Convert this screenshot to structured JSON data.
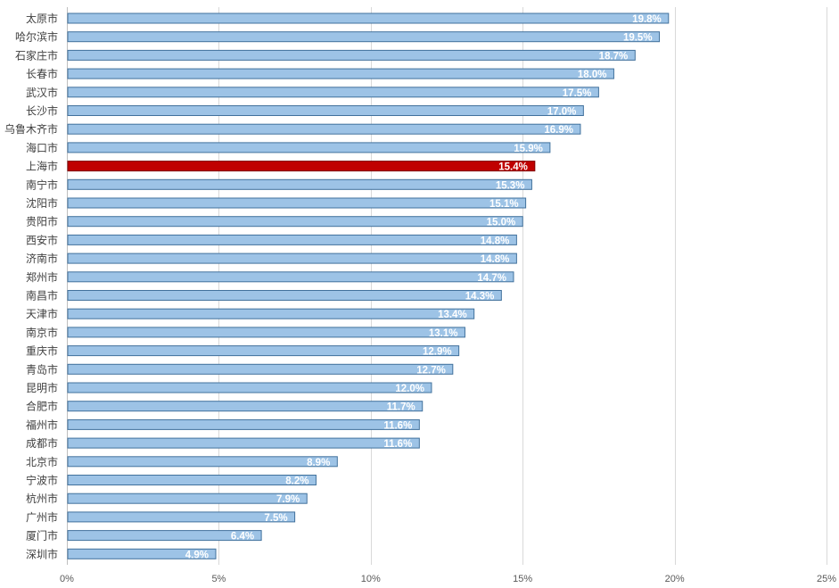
{
  "chart_data": {
    "type": "bar",
    "orientation": "horizontal",
    "categories": [
      "太原市",
      "哈尔滨市",
      "石家庄市",
      "长春市",
      "武汉市",
      "长沙市",
      "乌鲁木齐市",
      "海口市",
      "上海市",
      "南宁市",
      "沈阳市",
      "贵阳市",
      "西安市",
      "济南市",
      "郑州市",
      "南昌市",
      "天津市",
      "南京市",
      "重庆市",
      "青岛市",
      "昆明市",
      "合肥市",
      "福州市",
      "成都市",
      "北京市",
      "宁波市",
      "杭州市",
      "广州市",
      "厦门市",
      "深圳市"
    ],
    "values": [
      19.8,
      19.5,
      18.7,
      18.0,
      17.5,
      17.0,
      16.9,
      15.9,
      15.4,
      15.3,
      15.1,
      15.0,
      14.8,
      14.8,
      14.7,
      14.3,
      13.4,
      13.1,
      12.9,
      12.7,
      12.0,
      11.7,
      11.6,
      11.6,
      8.9,
      8.2,
      7.9,
      7.5,
      6.4,
      4.9
    ],
    "data_labels": [
      "19.8%",
      "19.5%",
      "18.7%",
      "18.0%",
      "17.5%",
      "17.0%",
      "16.9%",
      "15.9%",
      "15.4%",
      "15.3%",
      "15.1%",
      "15.0%",
      "14.8%",
      "14.8%",
      "14.7%",
      "14.3%",
      "13.4%",
      "13.1%",
      "12.9%",
      "12.7%",
      "12.0%",
      "11.7%",
      "11.6%",
      "11.6%",
      "8.9%",
      "8.2%",
      "7.9%",
      "7.5%",
      "6.4%",
      "4.9%"
    ],
    "highlight_category": "上海市",
    "xlim": [
      0,
      25
    ],
    "x_ticks": [
      0,
      5,
      10,
      15,
      20,
      25
    ],
    "x_tick_labels": [
      "0%",
      "5%",
      "10%",
      "15%",
      "20%",
      "25%"
    ],
    "grid": "vertical",
    "legend": "none",
    "title": "",
    "xlabel": "",
    "ylabel": ""
  },
  "colors": {
    "bar_fill": "#9dc3e6",
    "bar_stroke": "#41719c",
    "highlight_fill": "#c00000",
    "highlight_stroke": "#7f0000",
    "grid": "#d9d9d9",
    "axis": "#bfbfbf"
  }
}
